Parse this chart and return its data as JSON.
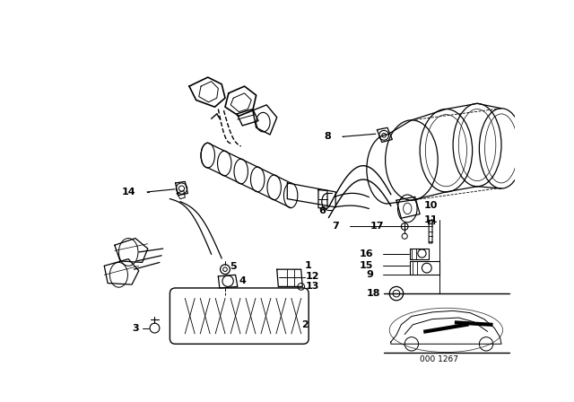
{
  "bg_color": "#ffffff",
  "line_color": "#000000",
  "fig_width": 6.4,
  "fig_height": 4.48,
  "dpi": 100,
  "diagram_code": "000 1267"
}
